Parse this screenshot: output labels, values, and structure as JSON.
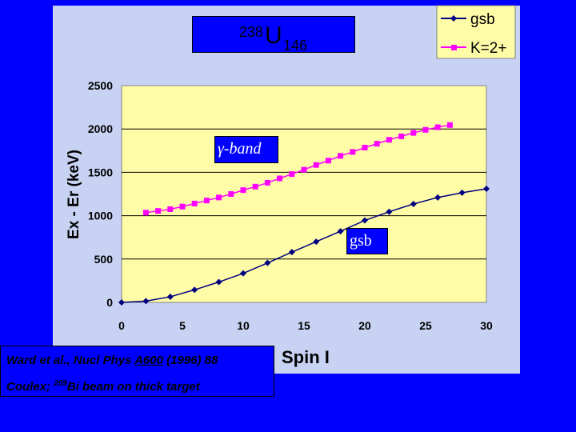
{
  "title": {
    "mass": "238",
    "element": "U",
    "neutrons": "146"
  },
  "reference": {
    "line1_pre": "Ward et al., Nucl Phys ",
    "line1_volume": "A600",
    "line1_post": " (1996) 88",
    "line2_pre": "Coulex; ",
    "line2_mass": "209",
    "line2_post": "Bi beam on thick target"
  },
  "annotations": {
    "gamma_band": "γ-band",
    "gsb": "gsb"
  },
  "colors": {
    "background": "#0000ff",
    "panel": "#c8d3f3",
    "plot_area": "#fffca8",
    "gsb": "#000080",
    "k2": "#ff00ff"
  },
  "chart_data": {
    "type": "line",
    "xlabel": "Spin I",
    "ylabel": "Ex - Er (keV)",
    "xlim": [
      0,
      30
    ],
    "ylim": [
      0,
      2500
    ],
    "xticks": [
      0,
      5,
      10,
      15,
      20,
      25,
      30
    ],
    "yticks": [
      0,
      500,
      1000,
      1500,
      2000,
      2500
    ],
    "grid": "horizontal",
    "legend": "top-right",
    "series": [
      {
        "name": "gsb",
        "marker": "diamond",
        "color": "#000080",
        "x": [
          0,
          2,
          4,
          6,
          8,
          10,
          12,
          14,
          16,
          18,
          20,
          22,
          24,
          26,
          28,
          30
        ],
        "y": [
          0,
          15,
          65,
          145,
          235,
          335,
          455,
          580,
          700,
          820,
          945,
          1045,
          1135,
          1210,
          1265,
          1310
        ]
      },
      {
        "name": "K=2+",
        "marker": "square",
        "color": "#ff00ff",
        "x": [
          2,
          3,
          4,
          5,
          6,
          7,
          8,
          9,
          10,
          11,
          12,
          13,
          14,
          15,
          16,
          17,
          18,
          19,
          20,
          21,
          22,
          23,
          24,
          25,
          26,
          27
        ],
        "y": [
          1035,
          1055,
          1075,
          1105,
          1140,
          1175,
          1210,
          1250,
          1295,
          1335,
          1380,
          1430,
          1480,
          1530,
          1585,
          1635,
          1690,
          1735,
          1785,
          1830,
          1875,
          1915,
          1955,
          1990,
          2020,
          2045
        ]
      }
    ]
  }
}
